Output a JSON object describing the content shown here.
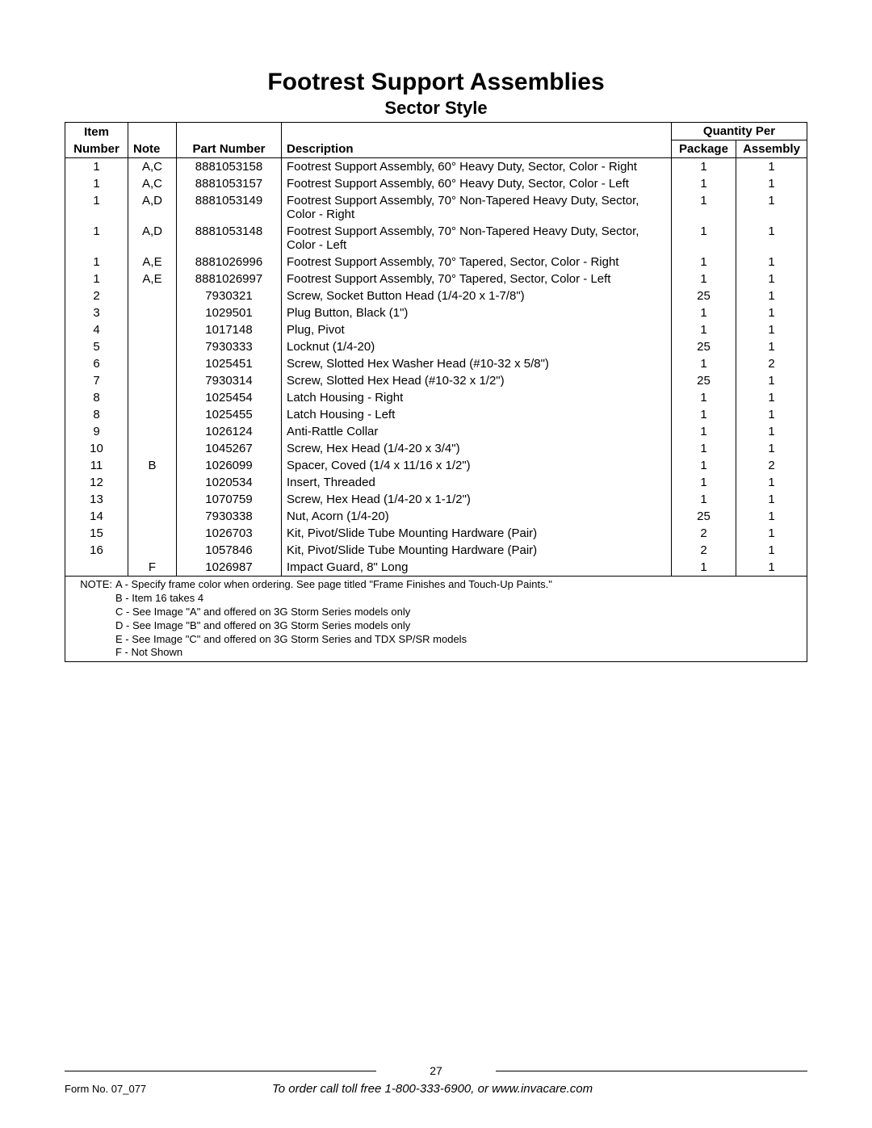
{
  "title": "Footrest Support Assemblies",
  "subtitle": "Sector Style",
  "columns": {
    "qty_per_group": "Quantity Per",
    "item_line1": "Item",
    "item_line2": "Number",
    "note": "Note",
    "part": "Part Number",
    "desc": "Description",
    "pkg": "Package",
    "asm": "Assembly"
  },
  "rows": [
    {
      "item": "1",
      "note": "A,C",
      "part": "8881053158",
      "desc": "Footrest Support Assembly, 60° Heavy Duty, Sector, Color - Right",
      "pkg": "1",
      "asm": "1"
    },
    {
      "item": "1",
      "note": "A,C",
      "part": "8881053157",
      "desc": "Footrest Support Assembly, 60° Heavy Duty, Sector, Color - Left",
      "pkg": "1",
      "asm": "1"
    },
    {
      "item": "1",
      "note": "A,D",
      "part": "8881053149",
      "desc": "Footrest Support Assembly, 70° Non-Tapered Heavy Duty, Sector, Color - Right",
      "pkg": "1",
      "asm": "1"
    },
    {
      "item": "1",
      "note": "A,D",
      "part": "8881053148",
      "desc": "Footrest Support Assembly, 70° Non-Tapered Heavy Duty, Sector, Color - Left",
      "pkg": "1",
      "asm": "1"
    },
    {
      "item": "1",
      "note": "A,E",
      "part": "8881026996",
      "desc": "Footrest Support Assembly, 70° Tapered, Sector, Color - Right",
      "pkg": "1",
      "asm": "1"
    },
    {
      "item": "1",
      "note": "A,E",
      "part": "8881026997",
      "desc": "Footrest Support Assembly, 70° Tapered, Sector, Color - Left",
      "pkg": "1",
      "asm": "1"
    },
    {
      "item": "2",
      "note": "",
      "part": "7930321",
      "desc": "Screw, Socket Button Head (1/4-20 x 1-7/8\")",
      "pkg": "25",
      "asm": "1"
    },
    {
      "item": "3",
      "note": "",
      "part": "1029501",
      "desc": "Plug Button, Black (1\")",
      "pkg": "1",
      "asm": "1"
    },
    {
      "item": "4",
      "note": "",
      "part": "1017148",
      "desc": "Plug, Pivot",
      "pkg": "1",
      "asm": "1"
    },
    {
      "item": "5",
      "note": "",
      "part": "7930333",
      "desc": "Locknut (1/4-20)",
      "pkg": "25",
      "asm": "1"
    },
    {
      "item": "6",
      "note": "",
      "part": "1025451",
      "desc": "Screw, Slotted Hex Washer Head (#10-32 x 5/8\")",
      "pkg": "1",
      "asm": "2"
    },
    {
      "item": "7",
      "note": "",
      "part": "7930314",
      "desc": "Screw, Slotted Hex Head (#10-32 x 1/2\")",
      "pkg": "25",
      "asm": "1"
    },
    {
      "item": "8",
      "note": "",
      "part": "1025454",
      "desc": "Latch Housing - Right",
      "pkg": "1",
      "asm": "1"
    },
    {
      "item": "8",
      "note": "",
      "part": "1025455",
      "desc": "Latch Housing - Left",
      "pkg": "1",
      "asm": "1"
    },
    {
      "item": "9",
      "note": "",
      "part": "1026124",
      "desc": "Anti-Rattle Collar",
      "pkg": "1",
      "asm": "1"
    },
    {
      "item": "10",
      "note": "",
      "part": "1045267",
      "desc": "Screw, Hex Head (1/4-20 x 3/4\")",
      "pkg": "1",
      "asm": "1"
    },
    {
      "item": "11",
      "note": "B",
      "part": "1026099",
      "desc": "Spacer, Coved (1/4 x 11/16 x 1/2\")",
      "pkg": "1",
      "asm": "2"
    },
    {
      "item": "12",
      "note": "",
      "part": "1020534",
      "desc": "Insert, Threaded",
      "pkg": "1",
      "asm": "1"
    },
    {
      "item": "13",
      "note": "",
      "part": "1070759",
      "desc": "Screw, Hex Head (1/4-20 x 1-1/2\")",
      "pkg": "1",
      "asm": "1"
    },
    {
      "item": "14",
      "note": "",
      "part": "7930338",
      "desc": "Nut, Acorn (1/4-20)",
      "pkg": "25",
      "asm": "1"
    },
    {
      "item": "15",
      "note": "",
      "part": "1026703",
      "desc": "Kit, Pivot/Slide Tube Mounting Hardware (Pair)",
      "pkg": "2",
      "asm": "1"
    },
    {
      "item": "16",
      "note": "",
      "part": "1057846",
      "desc": "Kit, Pivot/Slide Tube Mounting Hardware (Pair)",
      "pkg": "2",
      "asm": "1"
    },
    {
      "item": "",
      "note": "F",
      "part": "1026987",
      "desc": "Impact Guard, 8\" Long",
      "pkg": "1",
      "asm": "1"
    }
  ],
  "notes": {
    "prefix": "NOTE:",
    "lines": [
      "A - Specify frame color when ordering. See page titled \"Frame Finishes and Touch-Up Paints.\"",
      "B - Item 16 takes 4",
      "C - See Image \"A\" and offered on 3G Storm Series models only",
      "D - See Image \"B\" and offered on 3G Storm Series models only",
      "E - See Image \"C\" and offered on 3G Storm Series and TDX SP/SR models",
      "F - Not Shown"
    ]
  },
  "footer": {
    "page_number": "27",
    "form_no": "Form No. 07_077",
    "order_text": "To order call toll free 1-800-333-6900, or www.invacare.com"
  }
}
